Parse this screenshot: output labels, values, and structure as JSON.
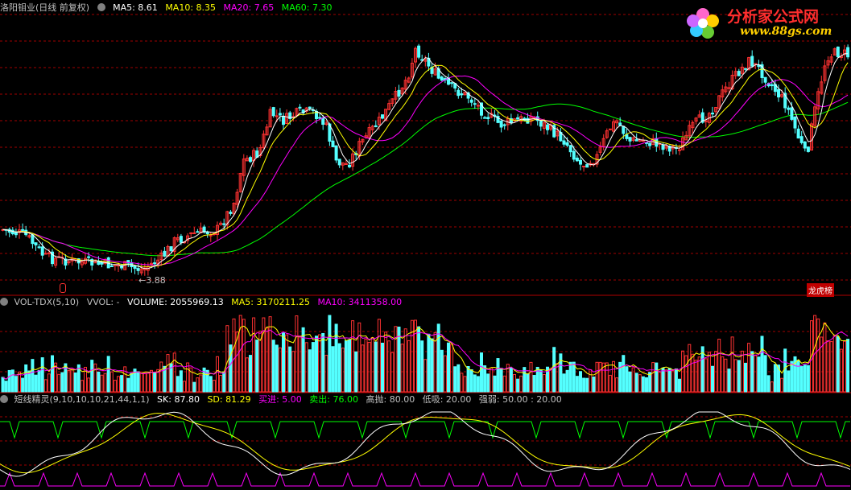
{
  "main": {
    "title": "洛阳钼业(日线 前复权)",
    "indicators": [
      {
        "label": "MA5: 8.61",
        "color": "#ffffff"
      },
      {
        "label": "MA10: 8.35",
        "color": "#ffff00"
      },
      {
        "label": "MA20: 7.65",
        "color": "#ff00ff"
      },
      {
        "label": "MA60: 7.30",
        "color": "#00ff00"
      }
    ],
    "low_marker": "3.88",
    "badge": "龙虎榜"
  },
  "volume": {
    "title": "VOL-TDX(5,10)",
    "indicators": [
      {
        "label": "VVOL: -",
        "color": "#c0c0c0"
      },
      {
        "label": "VOLUME: 2055969.13",
        "color": "#ffffff"
      },
      {
        "label": "MA5: 3170211.25",
        "color": "#ffff00"
      },
      {
        "label": "MA10: 3411358.00",
        "color": "#ff00ff"
      }
    ]
  },
  "osc": {
    "title": "短线精灵(9,10,10,10,21,44,1,1)",
    "indicators": [
      {
        "label": "SK: 87.80",
        "color": "#ffffff"
      },
      {
        "label": "SD: 81.29",
        "color": "#ffff00"
      },
      {
        "label": "买进: 5.00",
        "color": "#ff00ff"
      },
      {
        "label": "卖出: 76.00",
        "color": "#00ff00"
      },
      {
        "label": "高抛: 80.00",
        "color": "#c0c0c0"
      },
      {
        "label": "低吸: 20.00",
        "color": "#c0c0c0"
      },
      {
        "label": "强弱: 50.00 : 20.00",
        "color": "#c0c0c0"
      }
    ]
  },
  "logo": {
    "name": "分析家公式网",
    "url": "www.88gs.com"
  },
  "colors": {
    "up": "#ff3232",
    "down": "#54ffff",
    "grid": "#a00000"
  },
  "chart_data": [
    {
      "type": "candlestick",
      "description": "daily price (forward-adjusted)",
      "visible_low": 3.88,
      "ma_latest": {
        "MA5": 8.61,
        "MA10": 8.35,
        "MA20": 7.65,
        "MA60": 7.3
      }
    },
    {
      "type": "bar",
      "description": "volume",
      "latest": {
        "VOLUME": 2055969.13,
        "MA5": 3170211.25,
        "MA10": 3411358.0
      }
    },
    {
      "type": "line",
      "description": "oscillator",
      "latest": {
        "SK": 87.8,
        "SD": 81.29
      },
      "levels": {
        "buy": 5.0,
        "sell": 76.0,
        "high": 80.0,
        "low": 20.0
      }
    }
  ]
}
